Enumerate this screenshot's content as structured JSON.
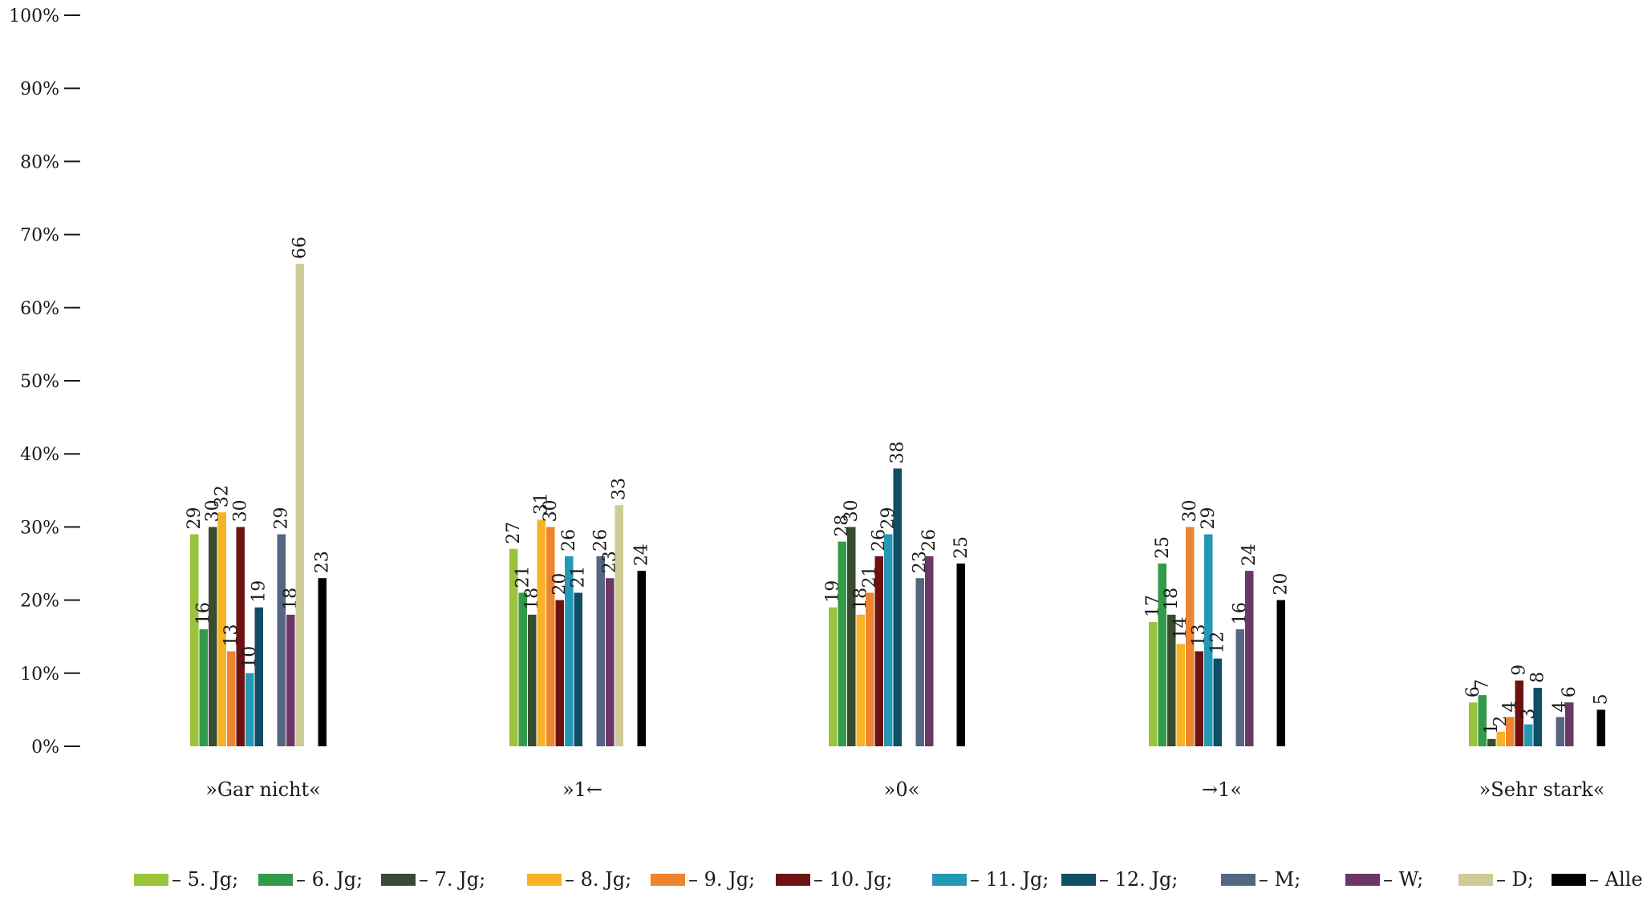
{
  "chart_data": {
    "type": "bar",
    "title": "",
    "xlabel": "",
    "ylabel": "",
    "ylim": [
      0,
      100
    ],
    "yticks": [
      0,
      10,
      20,
      30,
      40,
      50,
      60,
      70,
      80,
      90,
      100
    ],
    "ytick_suffix": "%",
    "grid": false,
    "legend_position": "bottom",
    "categories": [
      "»Gar nicht«",
      "»1←",
      "»0«",
      "→1«",
      "»Sehr stark«"
    ],
    "series": [
      {
        "name": "– 5. Jg;",
        "color": "#99c43c",
        "values": [
          29,
          27,
          19,
          17,
          6
        ]
      },
      {
        "name": "– 6. Jg;",
        "color": "#329a49",
        "values": [
          16,
          21,
          28,
          25,
          7
        ]
      },
      {
        "name": "– 7. Jg;",
        "color": "#374c31",
        "values": [
          30,
          18,
          30,
          18,
          1
        ]
      },
      {
        "name": "– 8. Jg;",
        "color": "#f7b225",
        "values": [
          32,
          31,
          18,
          14,
          2
        ]
      },
      {
        "name": "– 9. Jg;",
        "color": "#ec8430",
        "values": [
          13,
          30,
          21,
          30,
          4
        ]
      },
      {
        "name": "– 10. Jg;",
        "color": "#6e1211",
        "values": [
          30,
          20,
          26,
          13,
          9
        ]
      },
      {
        "name": "– 11. Jg;",
        "color": "#2598b5",
        "values": [
          10,
          26,
          29,
          29,
          3
        ]
      },
      {
        "name": "– 12. Jg;",
        "color": "#104d66",
        "values": [
          19,
          21,
          38,
          12,
          8
        ]
      },
      {
        "name": "– M;",
        "color": "#546681",
        "values": [
          29,
          26,
          23,
          16,
          4
        ]
      },
      {
        "name": "– W;",
        "color": "#6c3767",
        "values": [
          18,
          23,
          26,
          24,
          6
        ]
      },
      {
        "name": "– D;",
        "color": "#cfcb96",
        "values": [
          66,
          33,
          null,
          null,
          null
        ]
      },
      {
        "name": "– Alle",
        "color": "#000000",
        "values": [
          23,
          24,
          25,
          20,
          5
        ]
      }
    ]
  }
}
